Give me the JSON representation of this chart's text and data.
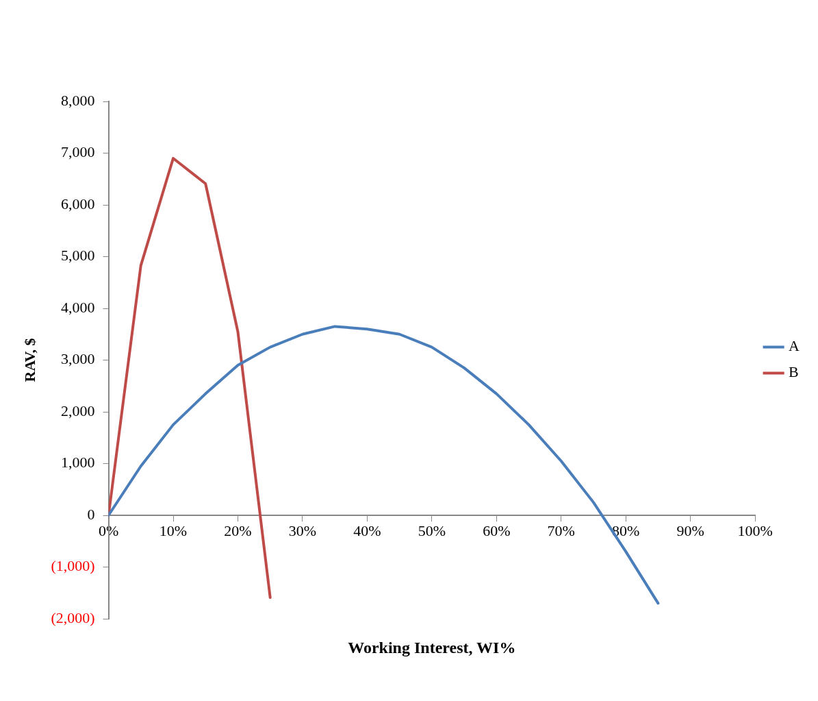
{
  "chart_data": {
    "type": "line",
    "xlabel": "Working Interest, WI%",
    "ylabel": "RAV, $",
    "xlim": [
      0,
      100
    ],
    "ylim": [
      -2000,
      8000
    ],
    "xticks": [
      {
        "value": 0,
        "label": "0%"
      },
      {
        "value": 10,
        "label": "10%"
      },
      {
        "value": 20,
        "label": "20%"
      },
      {
        "value": 30,
        "label": "30%"
      },
      {
        "value": 40,
        "label": "40%"
      },
      {
        "value": 50,
        "label": "50%"
      },
      {
        "value": 60,
        "label": "60%"
      },
      {
        "value": 70,
        "label": "70%"
      },
      {
        "value": 80,
        "label": "80%"
      },
      {
        "value": 90,
        "label": "90%"
      },
      {
        "value": 100,
        "label": "100%"
      }
    ],
    "yticks": [
      {
        "value": -2000,
        "label": "(2,000)"
      },
      {
        "value": -1000,
        "label": "(1,000)"
      },
      {
        "value": 0,
        "label": "0"
      },
      {
        "value": 1000,
        "label": "1,000"
      },
      {
        "value": 2000,
        "label": "2,000"
      },
      {
        "value": 3000,
        "label": "3,000"
      },
      {
        "value": 4000,
        "label": "4,000"
      },
      {
        "value": 5000,
        "label": "5,000"
      },
      {
        "value": 6000,
        "label": "6,000"
      },
      {
        "value": 7000,
        "label": "7,000"
      },
      {
        "value": 8000,
        "label": "8,000"
      }
    ],
    "grid": false,
    "legend": "right",
    "marker": "none",
    "line_style": "solid",
    "series": [
      {
        "name": "A",
        "color": "#4a7ebb",
        "x": [
          0,
          5,
          10,
          15,
          20,
          25,
          30,
          35,
          40,
          45,
          50,
          55,
          60,
          65,
          70,
          75,
          80,
          85
        ],
        "values": [
          0,
          950,
          1750,
          2350,
          2900,
          3250,
          3500,
          3650,
          3600,
          3500,
          3250,
          2850,
          2350,
          1750,
          1050,
          250,
          -700,
          -1700
        ]
      },
      {
        "name": "B",
        "color": "#be4b48",
        "x": [
          0,
          5,
          10,
          15,
          20,
          25
        ],
        "values": [
          0,
          4830,
          6900,
          6410,
          3550,
          -1590
        ]
      }
    ]
  }
}
